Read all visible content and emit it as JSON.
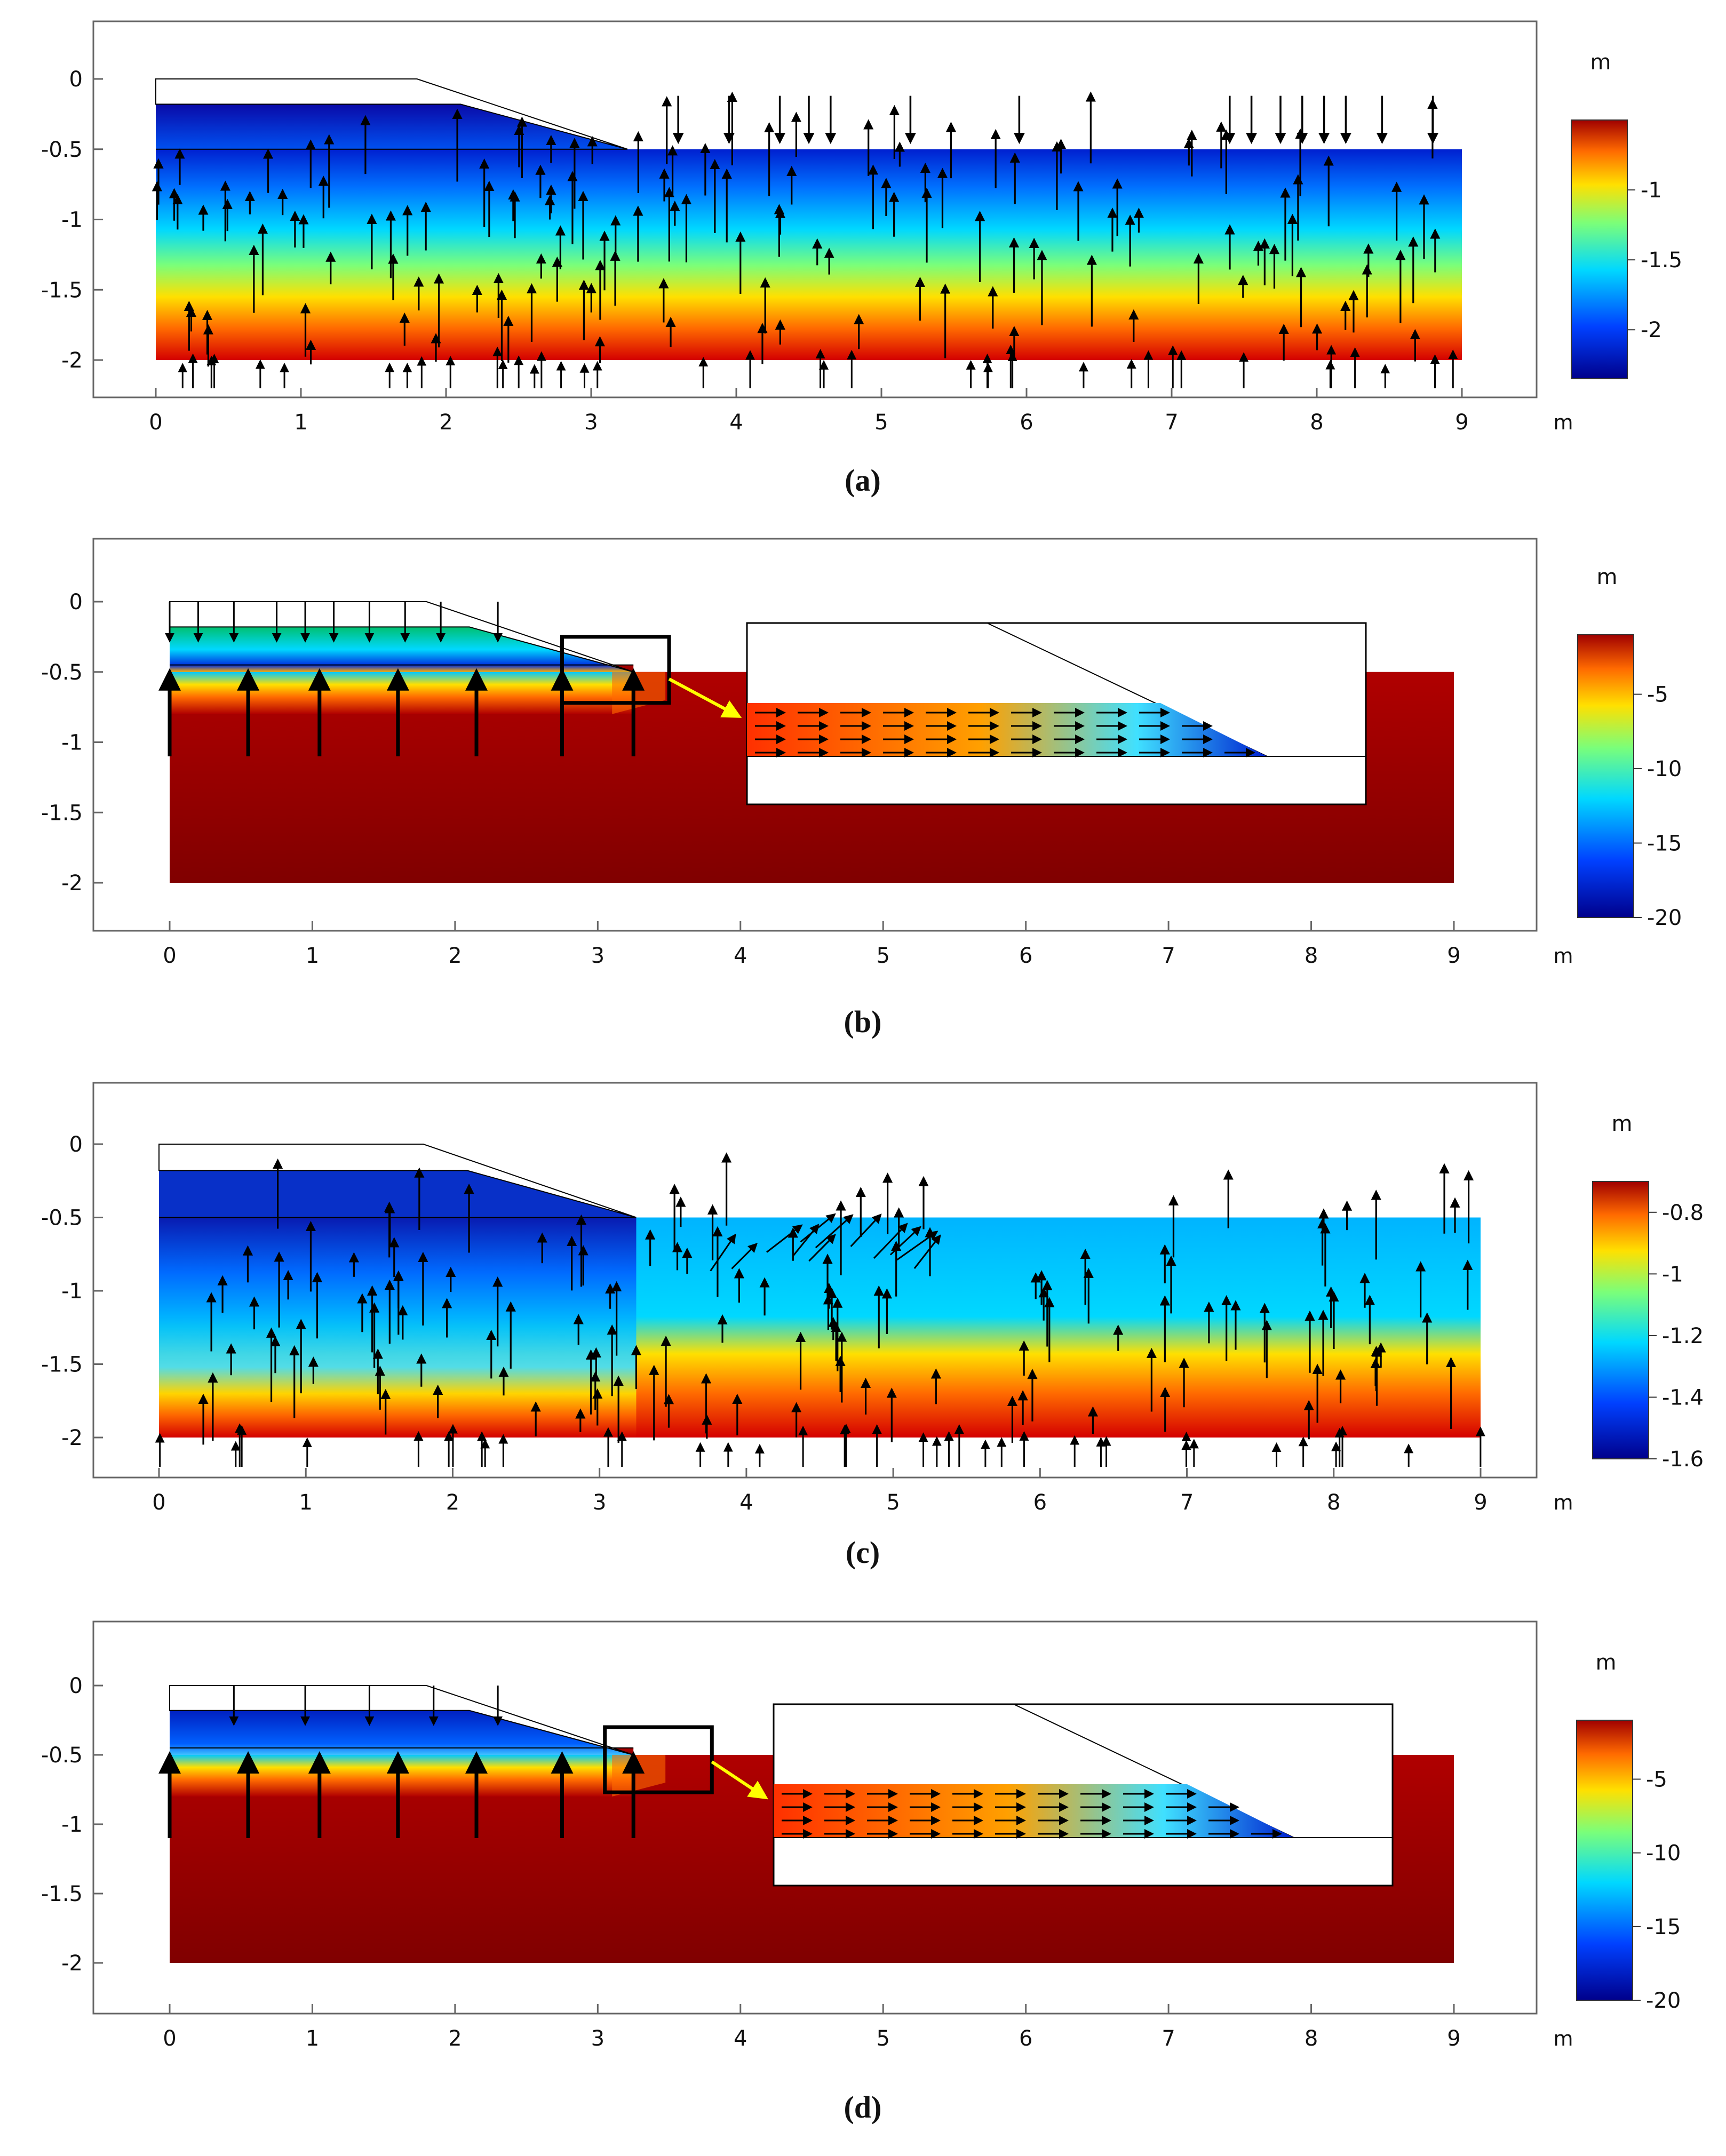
{
  "colors": {
    "deep_blue": "#00008b",
    "blue": "#0040ff",
    "cyan": "#00d8ff",
    "yellow": "#ffe000",
    "orange": "#ff6a00",
    "red": "#e00000",
    "dark_red": "#8b0000",
    "arrow": "#000000",
    "inset_arrow": "#ffff00"
  },
  "panels": [
    {
      "id": "a",
      "caption": "(a)",
      "x_unit": "m",
      "x_ticks": [
        "0",
        "1",
        "2",
        "3",
        "4",
        "5",
        "6",
        "7",
        "8",
        "9"
      ],
      "y_ticks": [
        "0",
        "-0.5",
        "-1",
        "-1.5",
        "-2"
      ],
      "colorbar": {
        "unit": "m",
        "labels": [
          "-1",
          "-1.5",
          "-2"
        ],
        "range": [
          -2.35,
          -0.5
        ]
      },
      "inset": false
    },
    {
      "id": "b",
      "caption": "(b)",
      "x_unit": "m",
      "x_ticks": [
        "0",
        "1",
        "2",
        "3",
        "4",
        "5",
        "6",
        "7",
        "8",
        "9"
      ],
      "y_ticks": [
        "0",
        "-0.5",
        "-1",
        "-1.5",
        "-2"
      ],
      "colorbar": {
        "unit": "m",
        "labels": [
          "-5",
          "-10",
          "-15",
          "-20"
        ],
        "range": [
          -20,
          -1
        ]
      },
      "inset": true
    },
    {
      "id": "c",
      "caption": "(c)",
      "x_unit": "m",
      "x_ticks": [
        "0",
        "1",
        "2",
        "3",
        "4",
        "5",
        "6",
        "7",
        "8",
        "9"
      ],
      "y_ticks": [
        "0",
        "-0.5",
        "-1",
        "-1.5",
        "-2"
      ],
      "colorbar": {
        "unit": "m",
        "labels": [
          "-0.8",
          "-1",
          "-1.2",
          "-1.4",
          "-1.6"
        ],
        "range": [
          -1.6,
          -0.7
        ]
      },
      "inset": false
    },
    {
      "id": "d",
      "caption": "(d)",
      "x_unit": "m",
      "x_ticks": [
        "0",
        "1",
        "2",
        "3",
        "4",
        "5",
        "6",
        "7",
        "8",
        "9"
      ],
      "y_ticks": [
        "0",
        "-0.5",
        "-1",
        "-1.5",
        "-2"
      ],
      "colorbar": {
        "unit": "m",
        "labels": [
          "-5",
          "-10",
          "-15",
          "-20"
        ],
        "range": [
          -20,
          -1
        ]
      },
      "inset": true
    }
  ]
}
